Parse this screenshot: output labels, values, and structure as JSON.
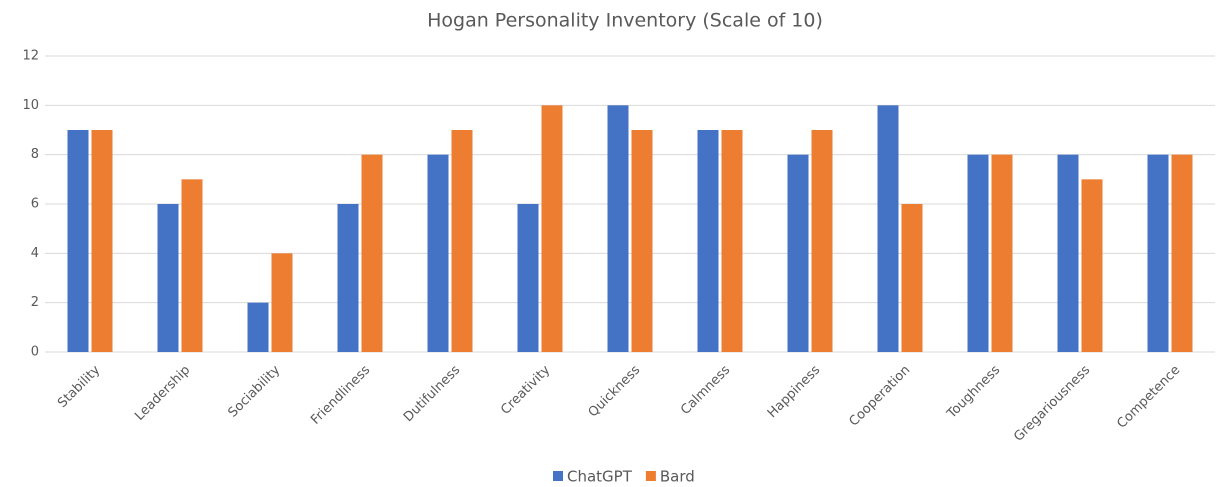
{
  "chart_data": {
    "type": "bar",
    "title": "Hogan Personality Inventory  (Scale of 10)",
    "categories": [
      "Stability",
      "Leadership",
      "Sociability",
      "Friendliness",
      "Dutifulness",
      "Creativity",
      "Quickness",
      "Calmness",
      "Happiness",
      "Cooperation",
      "Toughness",
      "Gregariousness",
      "Competence"
    ],
    "series": [
      {
        "name": "ChatGPT",
        "color": "#4472c4",
        "values": [
          9,
          6,
          2,
          6,
          8,
          6,
          10,
          9,
          8,
          10,
          8,
          8,
          8
        ]
      },
      {
        "name": "Bard",
        "color": "#ed7d31",
        "values": [
          9,
          7,
          4,
          8,
          9,
          10,
          9,
          9,
          9,
          6,
          8,
          7,
          8
        ]
      }
    ],
    "ylim": [
      0,
      12
    ],
    "yticks": [
      0,
      2,
      4,
      6,
      8,
      10,
      12
    ],
    "grid": true,
    "legend": "bottom"
  }
}
